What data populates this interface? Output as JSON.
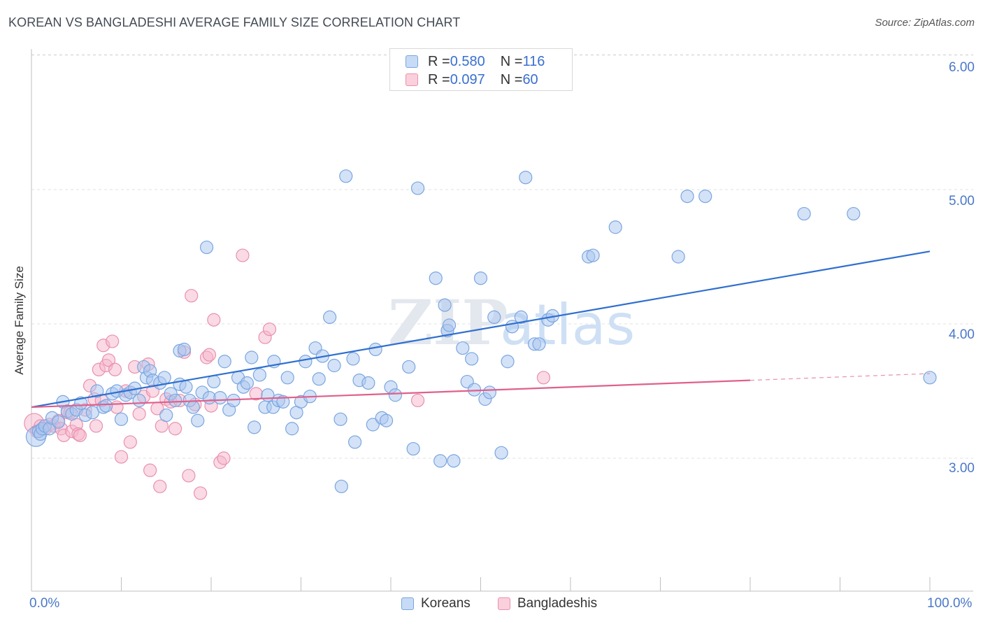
{
  "header": {
    "title": "KOREAN VS BANGLADESHI AVERAGE FAMILY SIZE CORRELATION CHART",
    "source": "Source: ZipAtlas.com"
  },
  "legend": {
    "rows": [
      {
        "r_label": "R = ",
        "r_value": "0.580",
        "n_label": "N = ",
        "n_value": "116",
        "color": "#a9c6ef"
      },
      {
        "r_label": "R = ",
        "r_value": "0.097",
        "n_label": "N = ",
        "n_value": "60",
        "color": "#f5b6cb"
      }
    ]
  },
  "colors": {
    "korean_fill": "#a9c6ef",
    "korean_stroke": "#7aa6e0",
    "korean_line": "#2f6fd0",
    "bangladeshi_fill": "#f5b6cb",
    "bangladeshi_stroke": "#e990ae",
    "bangladeshi_line": "#e0608c"
  },
  "chart_data": {
    "type": "scatter",
    "title": "KOREAN VS BANGLADESHI AVERAGE FAMILY SIZE CORRELATION CHART",
    "xlabel": "",
    "ylabel": "Average Family Size",
    "xlim": [
      0,
      100
    ],
    "ylim": [
      2.0,
      6.1
    ],
    "x_tick_labels": [
      "0.0%",
      "100.0%"
    ],
    "y_ticks": [
      3.0,
      4.0,
      5.0,
      6.0
    ],
    "y_tick_labels": [
      "3.00",
      "4.00",
      "5.00",
      "6.00"
    ],
    "grid": true,
    "legend_position": "top-center",
    "watermark": "ZIPatlas",
    "series": [
      {
        "name": "Koreans",
        "trend": {
          "x": [
            0,
            100
          ],
          "y": [
            3.38,
            4.54
          ]
        },
        "points": [
          [
            0.5,
            3.16
          ],
          [
            0.8,
            3.2
          ],
          [
            1.0,
            3.18
          ],
          [
            1.2,
            3.22
          ],
          [
            1.5,
            3.24
          ],
          [
            2,
            3.22
          ],
          [
            2.3,
            3.3
          ],
          [
            3,
            3.27
          ],
          [
            3.5,
            3.42
          ],
          [
            4,
            3.35
          ],
          [
            4.5,
            3.33
          ],
          [
            5,
            3.36
          ],
          [
            5.5,
            3.41
          ],
          [
            6,
            3.32
          ],
          [
            6.8,
            3.34
          ],
          [
            7.3,
            3.5
          ],
          [
            8,
            3.38
          ],
          [
            8.3,
            3.39
          ],
          [
            9,
            3.48
          ],
          [
            9.5,
            3.5
          ],
          [
            10,
            3.29
          ],
          [
            10.5,
            3.47
          ],
          [
            11,
            3.49
          ],
          [
            11.5,
            3.52
          ],
          [
            12,
            3.43
          ],
          [
            12.5,
            3.68
          ],
          [
            12.8,
            3.6
          ],
          [
            13.2,
            3.65
          ],
          [
            13.5,
            3.58
          ],
          [
            14.3,
            3.56
          ],
          [
            14.8,
            3.6
          ],
          [
            15,
            3.32
          ],
          [
            15.5,
            3.48
          ],
          [
            16,
            3.43
          ],
          [
            16.5,
            3.55
          ],
          [
            16.5,
            3.8
          ],
          [
            17,
            3.81
          ],
          [
            17.2,
            3.53
          ],
          [
            17.6,
            3.43
          ],
          [
            18,
            3.38
          ],
          [
            18.5,
            3.28
          ],
          [
            19,
            3.49
          ],
          [
            19.5,
            4.57
          ],
          [
            19.8,
            3.45
          ],
          [
            20.3,
            3.57
          ],
          [
            21,
            3.45
          ],
          [
            21.5,
            3.72
          ],
          [
            22,
            3.36
          ],
          [
            22.5,
            3.43
          ],
          [
            23,
            3.6
          ],
          [
            23.6,
            3.53
          ],
          [
            24,
            3.56
          ],
          [
            24.5,
            3.75
          ],
          [
            24.8,
            3.23
          ],
          [
            25.4,
            3.62
          ],
          [
            26,
            3.38
          ],
          [
            26.3,
            3.47
          ],
          [
            26.9,
            3.38
          ],
          [
            27,
            3.72
          ],
          [
            27.5,
            3.43
          ],
          [
            28,
            3.42
          ],
          [
            28.5,
            3.6
          ],
          [
            29,
            3.22
          ],
          [
            29.5,
            3.34
          ],
          [
            30,
            3.42
          ],
          [
            30.5,
            3.72
          ],
          [
            31,
            3.46
          ],
          [
            31.6,
            3.82
          ],
          [
            32,
            3.59
          ],
          [
            32.4,
            3.76
          ],
          [
            33.2,
            4.05
          ],
          [
            33.7,
            3.69
          ],
          [
            34.5,
            2.79
          ],
          [
            34.4,
            3.29
          ],
          [
            35,
            5.1
          ],
          [
            35.8,
            3.74
          ],
          [
            36,
            3.12
          ],
          [
            36.5,
            3.58
          ],
          [
            37.5,
            3.56
          ],
          [
            38,
            3.25
          ],
          [
            38.3,
            3.81
          ],
          [
            39,
            3.3
          ],
          [
            39.5,
            3.28
          ],
          [
            40,
            3.53
          ],
          [
            40.5,
            3.47
          ],
          [
            42,
            3.68
          ],
          [
            42.5,
            3.07
          ],
          [
            43,
            5.01
          ],
          [
            45,
            4.34
          ],
          [
            45.5,
            2.98
          ],
          [
            46,
            4.14
          ],
          [
            46.3,
            3.95
          ],
          [
            46.5,
            3.99
          ],
          [
            47,
            2.98
          ],
          [
            48,
            3.82
          ],
          [
            48.5,
            3.57
          ],
          [
            49,
            3.74
          ],
          [
            49.3,
            3.51
          ],
          [
            50,
            4.34
          ],
          [
            50.5,
            3.44
          ],
          [
            51,
            3.49
          ],
          [
            51.5,
            4.05
          ],
          [
            52.3,
            3.04
          ],
          [
            53,
            3.72
          ],
          [
            53.5,
            3.98
          ],
          [
            54.5,
            4.05
          ],
          [
            55,
            5.09
          ],
          [
            56,
            3.85
          ],
          [
            56.5,
            3.85
          ],
          [
            57.5,
            4.03
          ],
          [
            58,
            4.06
          ],
          [
            62,
            4.5
          ],
          [
            62.5,
            4.51
          ],
          [
            65,
            4.72
          ],
          [
            72,
            4.5
          ],
          [
            73,
            4.95
          ],
          [
            75,
            4.95
          ],
          [
            86,
            4.82
          ],
          [
            91.5,
            4.82
          ],
          [
            100,
            3.6
          ]
        ]
      },
      {
        "name": "Bangladeshis",
        "trend": {
          "x": [
            0,
            80
          ],
          "y": [
            3.38,
            3.58
          ]
        },
        "points": [
          [
            0.3,
            3.26
          ],
          [
            0.6,
            3.2
          ],
          [
            1.0,
            3.24
          ],
          [
            1.5,
            3.22
          ],
          [
            2,
            3.25
          ],
          [
            2.5,
            3.24
          ],
          [
            3,
            3.28
          ],
          [
            3.3,
            3.22
          ],
          [
            3.6,
            3.17
          ],
          [
            4,
            3.34
          ],
          [
            4.3,
            3.34
          ],
          [
            4.5,
            3.2
          ],
          [
            5,
            3.25
          ],
          [
            5.2,
            3.18
          ],
          [
            5.4,
            3.17
          ],
          [
            6,
            3.36
          ],
          [
            6.5,
            3.54
          ],
          [
            7,
            3.44
          ],
          [
            7.2,
            3.24
          ],
          [
            7.5,
            3.66
          ],
          [
            7.8,
            3.43
          ],
          [
            8,
            3.84
          ],
          [
            8.3,
            3.69
          ],
          [
            8.6,
            3.73
          ],
          [
            9,
            3.87
          ],
          [
            9.3,
            3.66
          ],
          [
            9.5,
            3.38
          ],
          [
            10,
            3.01
          ],
          [
            10.5,
            3.5
          ],
          [
            11,
            3.12
          ],
          [
            11.5,
            3.68
          ],
          [
            12,
            3.33
          ],
          [
            12.5,
            3.46
          ],
          [
            13,
            3.7
          ],
          [
            13.2,
            2.91
          ],
          [
            13.5,
            3.5
          ],
          [
            14,
            3.37
          ],
          [
            14.3,
            2.79
          ],
          [
            14.5,
            3.24
          ],
          [
            15,
            3.44
          ],
          [
            15.5,
            3.42
          ],
          [
            16,
            3.22
          ],
          [
            16.5,
            3.43
          ],
          [
            17,
            3.79
          ],
          [
            17.5,
            2.87
          ],
          [
            17.8,
            4.21
          ],
          [
            18.2,
            3.4
          ],
          [
            18.8,
            2.74
          ],
          [
            19.5,
            3.75
          ],
          [
            19.8,
            3.77
          ],
          [
            20,
            3.39
          ],
          [
            20.3,
            4.03
          ],
          [
            21,
            2.97
          ],
          [
            21.4,
            3.0
          ],
          [
            23.5,
            4.51
          ],
          [
            25,
            3.48
          ],
          [
            26,
            3.9
          ],
          [
            26.5,
            3.96
          ],
          [
            43,
            3.43
          ],
          [
            57,
            3.6
          ]
        ]
      }
    ]
  },
  "bottom_legend": {
    "items": [
      {
        "label": "Koreans",
        "color": "#a9c6ef"
      },
      {
        "label": "Bangladeshis",
        "color": "#f5b6cb"
      }
    ]
  }
}
